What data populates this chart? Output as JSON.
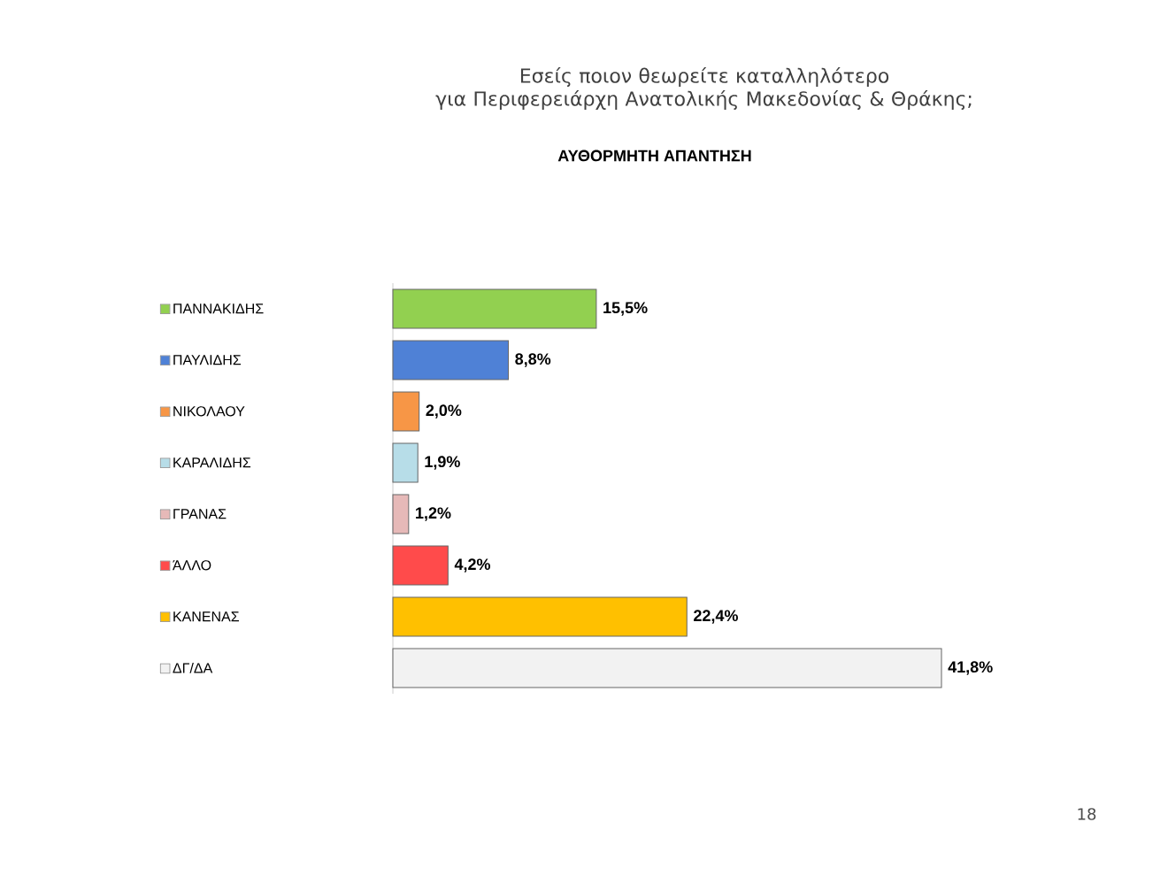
{
  "chart_data": {
    "type": "bar",
    "orientation": "horizontal",
    "title": "Εσείς ποιον θεωρείτε καταλληλότερο\nγια Περιφερειάρχη Ανατολικής Μακεδονίας & Θράκης;",
    "subtitle": "ΑΥΘΟΡΜΗΤΗ ΑΠΑΝΤΗΣΗ",
    "categories": [
      "ΠΑΝΝΑΚΙΔΗΣ",
      "ΠΑΥΛΙΔΗΣ",
      "ΝΙΚΟΛΑΟΥ",
      "ΚΑΡΑΛΙΔΗΣ",
      "ΓΡΑΝΑΣ",
      "ΆΛΛΟ",
      "ΚΑΝΕΝΑΣ",
      "ΔΓ/ΔΑ"
    ],
    "values": [
      15.5,
      8.8,
      2.0,
      1.9,
      1.2,
      4.2,
      22.4,
      41.8
    ],
    "colors": [
      "#92d050",
      "#4f81d6",
      "#f79646",
      "#b7dde8",
      "#e6b9b8",
      "#ff4b4b",
      "#ffc000",
      "#f2f2f2"
    ],
    "value_labels": [
      "15,5%",
      "8,8%",
      "2,0%",
      "1,9%",
      "1,2%",
      "4,2%",
      "22,4%",
      "41,8%"
    ],
    "annotations": [
      "18"
    ]
  }
}
